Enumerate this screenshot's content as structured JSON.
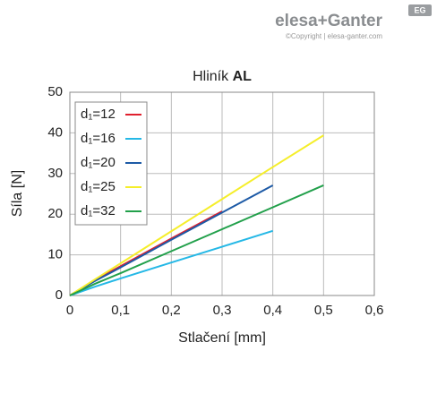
{
  "brand": {
    "logo": "elesa+Ganter",
    "copyright": "©Copyright | elesa-ganter.com",
    "badge": "EG"
  },
  "chart_data": {
    "type": "line",
    "title": "Hliník",
    "title_bold": "AL",
    "x_label": "Stlačení [mm]",
    "y_label": "Síla [N]",
    "xlim": [
      0,
      0.6
    ],
    "xticks": [
      0,
      {
        "value": 0.1,
        "label": "0,1"
      },
      {
        "value": 0.2,
        "label": "0,2"
      },
      {
        "value": 0.3,
        "label": "0,3"
      },
      {
        "value": 0.4,
        "label": "0,4"
      },
      {
        "value": 0.5,
        "label": "0,5"
      },
      {
        "value": 0.6,
        "label": "0,6"
      }
    ],
    "ylim": [
      0,
      50
    ],
    "yticks": [
      0,
      10,
      20,
      30,
      40,
      50
    ],
    "grid": true,
    "series": [
      {
        "name": "d₁=12",
        "color": "#e0202e",
        "x": [
          0,
          0.05,
          0.1,
          0.2,
          0.3
        ],
        "values": [
          0,
          3.8,
          7.2,
          14,
          20.7
        ]
      },
      {
        "name": "d₁=16",
        "color": "#25b8e6",
        "x": [
          0,
          0.05,
          0.1,
          0.2,
          0.3,
          0.4
        ],
        "values": [
          0,
          2.2,
          4.2,
          8.1,
          12,
          15.9
        ]
      },
      {
        "name": "d₁=20",
        "color": "#1d5aa6",
        "x": [
          0,
          0.05,
          0.1,
          0.2,
          0.3,
          0.4
        ],
        "values": [
          0,
          3.6,
          6.9,
          13.7,
          20.4,
          27.1
        ]
      },
      {
        "name": "d₁=25",
        "color": "#f5ee2a",
        "x": [
          0,
          0.05,
          0.1,
          0.2,
          0.3,
          0.4,
          0.5
        ],
        "values": [
          0,
          4,
          7.9,
          15.8,
          23.7,
          31.6,
          39.4
        ]
      },
      {
        "name": "d₁=32",
        "color": "#22a04b",
        "x": [
          0,
          0.05,
          0.1,
          0.2,
          0.3,
          0.4,
          0.5
        ],
        "values": [
          0,
          2.9,
          5.5,
          10.9,
          16.3,
          21.7,
          27.1
        ]
      }
    ]
  }
}
